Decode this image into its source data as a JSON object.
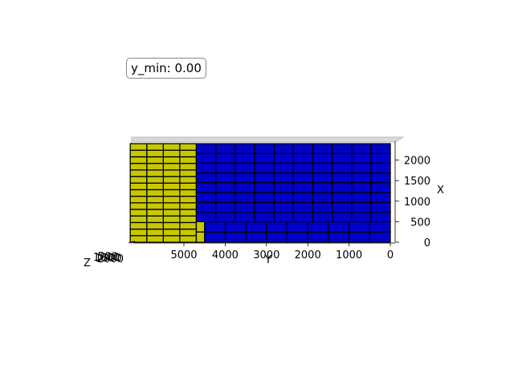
{
  "annotation": {
    "text": "y_min: 0.00"
  },
  "chart_data": {
    "type": "bar3d",
    "view": "top-down orthographic (viewed along Z)",
    "axes": {
      "x": {
        "label": "X",
        "ticks": [
          "0",
          "500",
          "1000",
          "1500",
          "2000"
        ]
      },
      "y": {
        "label": "Y",
        "ticks": [
          "0",
          "1000",
          "2000",
          "3000",
          "4000",
          "5000"
        ]
      },
      "z": {
        "label": "Z",
        "ticks": [
          "2000",
          "1500",
          "1000",
          "500"
        ]
      }
    },
    "y_min": 0.0,
    "colors": {
      "blue": "#0000c8",
      "yellow": "#c8c800",
      "edge": "#000000"
    },
    "box_groups": [
      {
        "color": "yellow",
        "y_range": [
          4700,
          6300
        ],
        "x_range": [
          0,
          2400
        ],
        "columns": 4,
        "rows": 15
      },
      {
        "color": "blue",
        "y_range": [
          0,
          4700
        ],
        "x_range": [
          500,
          2400
        ],
        "columns": 10,
        "rows": 8
      },
      {
        "color": "blue",
        "y_range": [
          0,
          4500
        ],
        "x_range": [
          0,
          500
        ],
        "columns": 9,
        "rows": 2
      },
      {
        "color": "yellow",
        "y_range": [
          4500,
          4700
        ],
        "x_range": [
          0,
          500
        ],
        "columns": 1,
        "rows": 2
      }
    ]
  }
}
